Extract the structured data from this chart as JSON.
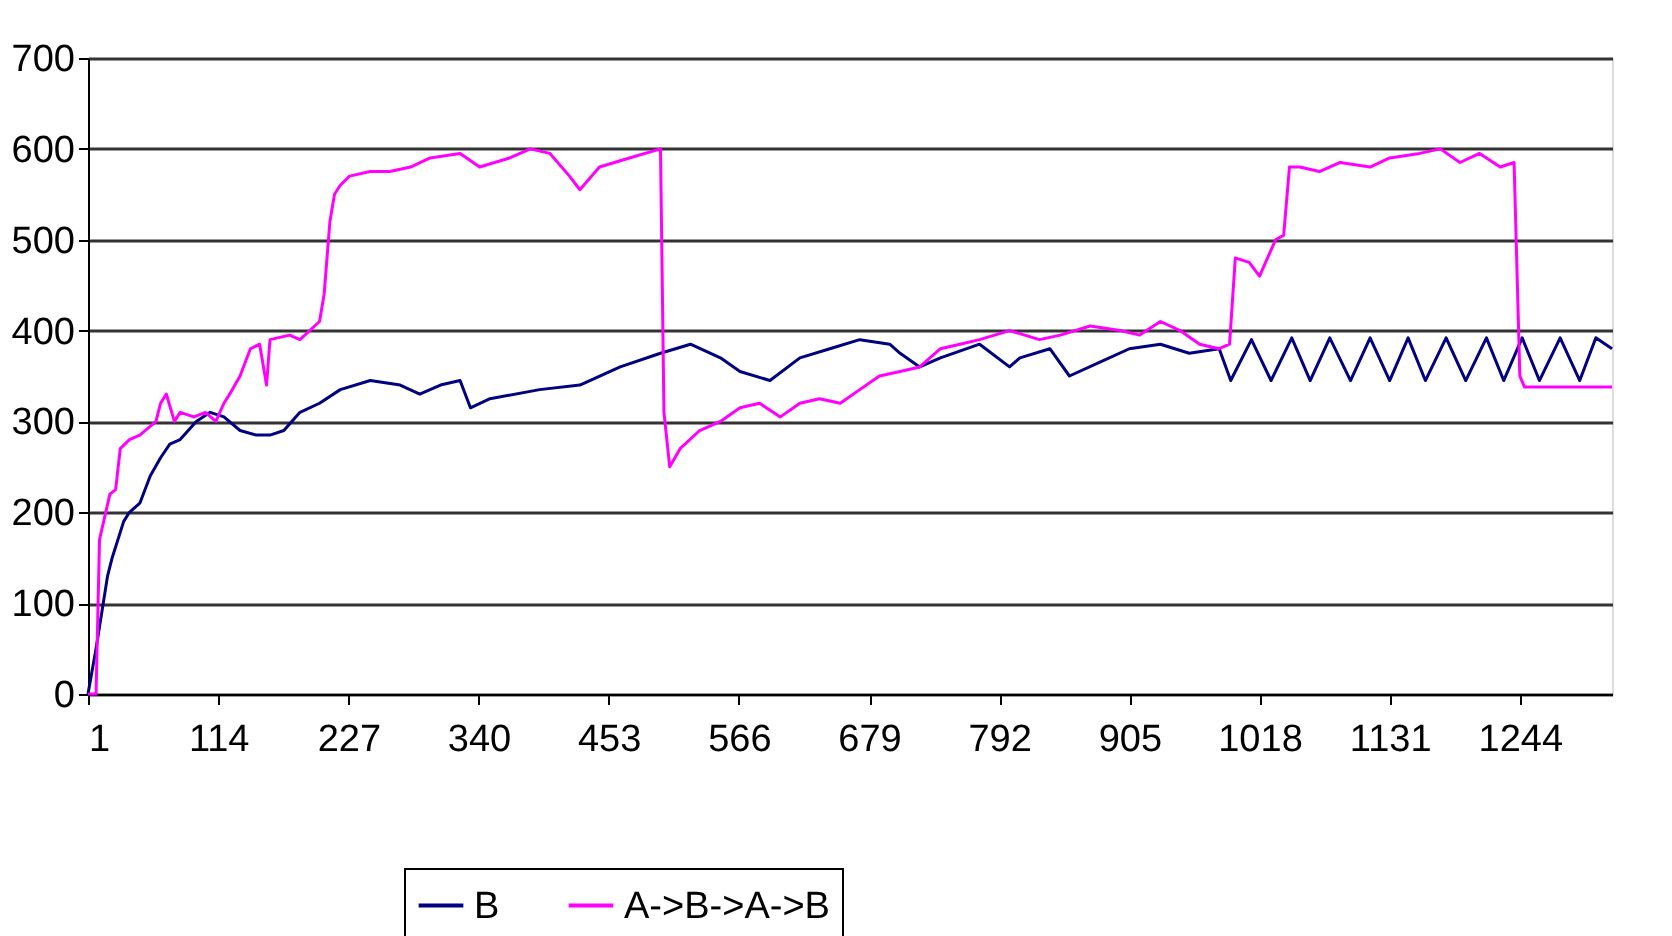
{
  "chart_data": {
    "type": "line",
    "xlim": [
      1,
      1324
    ],
    "xticks": [
      1,
      114,
      227,
      340,
      453,
      566,
      679,
      792,
      905,
      1018,
      1131,
      1244
    ],
    "ylim": [
      0,
      700
    ],
    "yticks": [
      0,
      100,
      200,
      300,
      400,
      500,
      600,
      700
    ],
    "grid": "y",
    "legend": "bottom",
    "marker": "none",
    "line_style": "solid",
    "series": [
      {
        "name": "B",
        "color": "#000080",
        "x": [
          1,
          8,
          18,
          22,
          32,
          37,
          46,
          55,
          64,
          72,
          81,
          95,
          107,
          119,
          133,
          147,
          159,
          171,
          185,
          202,
          220,
          246,
          272,
          289,
          307,
          324,
          333,
          350,
          393,
          428,
          463,
          498,
          524,
          550,
          567,
          593,
          619,
          645,
          671,
          697,
          706,
          723,
          741,
          775,
          801,
          810,
          836,
          853,
          879,
          905,
          932,
          957,
          983,
          993,
          1011,
          1028,
          1046,
          1062,
          1079,
          1097,
          1114,
          1131,
          1147,
          1162,
          1180,
          1197,
          1215,
          1230,
          1246,
          1261,
          1279,
          1296,
          1310,
          1324
        ],
        "values": [
          0,
          50,
          130,
          150,
          190,
          200,
          210,
          240,
          260,
          275,
          280,
          300,
          310,
          305,
          290,
          285,
          285,
          290,
          310,
          320,
          335,
          345,
          340,
          330,
          340,
          345,
          315,
          325,
          335,
          340,
          360,
          375,
          385,
          370,
          355,
          345,
          370,
          380,
          390,
          385,
          375,
          360,
          370,
          385,
          360,
          370,
          380,
          350,
          365,
          380,
          385,
          375,
          380,
          345,
          390,
          345,
          392,
          345,
          392,
          345,
          392,
          345,
          392,
          345,
          392,
          345,
          392,
          345,
          392,
          345,
          392,
          345,
          392,
          380
        ]
      },
      {
        "name": "A->B->A->B",
        "color": "#ff00ff",
        "x": [
          1,
          8,
          11,
          20,
          25,
          29,
          37,
          46,
          60,
          64,
          69,
          76,
          81,
          93,
          103,
          112,
          119,
          124,
          133,
          142,
          150,
          156,
          159,
          176,
          185,
          202,
          206,
          211,
          215,
          220,
          228,
          246,
          263,
          281,
          298,
          324,
          341,
          367,
          385,
          402,
          419,
          428,
          445,
          471,
          498,
          501,
          506,
          515,
          532,
          550,
          567,
          584,
          602,
          619,
          636,
          654,
          671,
          688,
          706,
          723,
          741,
          758,
          775,
          801,
          827,
          845,
          871,
          897,
          914,
          932,
          949,
          966,
          983,
          992,
          997,
          1009,
          1018,
          1032,
          1039,
          1044,
          1053,
          1070,
          1088,
          1114,
          1131,
          1157,
          1175,
          1192,
          1209,
          1227,
          1239,
          1244,
          1248,
          1324
        ],
        "values": [
          0,
          0,
          170,
          220,
          225,
          270,
          280,
          285,
          300,
          320,
          330,
          300,
          310,
          305,
          310,
          300,
          320,
          330,
          350,
          380,
          385,
          340,
          390,
          395,
          390,
          410,
          440,
          520,
          550,
          560,
          570,
          575,
          575,
          580,
          590,
          595,
          580,
          590,
          600,
          595,
          570,
          555,
          580,
          590,
          600,
          310,
          250,
          270,
          290,
          300,
          315,
          320,
          305,
          320,
          325,
          320,
          335,
          350,
          355,
          360,
          380,
          385,
          390,
          400,
          390,
          395,
          405,
          400,
          395,
          410,
          400,
          385,
          380,
          385,
          480,
          475,
          460,
          500,
          505,
          580,
          580,
          575,
          585,
          580,
          590,
          595,
          600,
          585,
          595,
          580,
          585,
          350,
          338,
          338
        ]
      }
    ]
  }
}
